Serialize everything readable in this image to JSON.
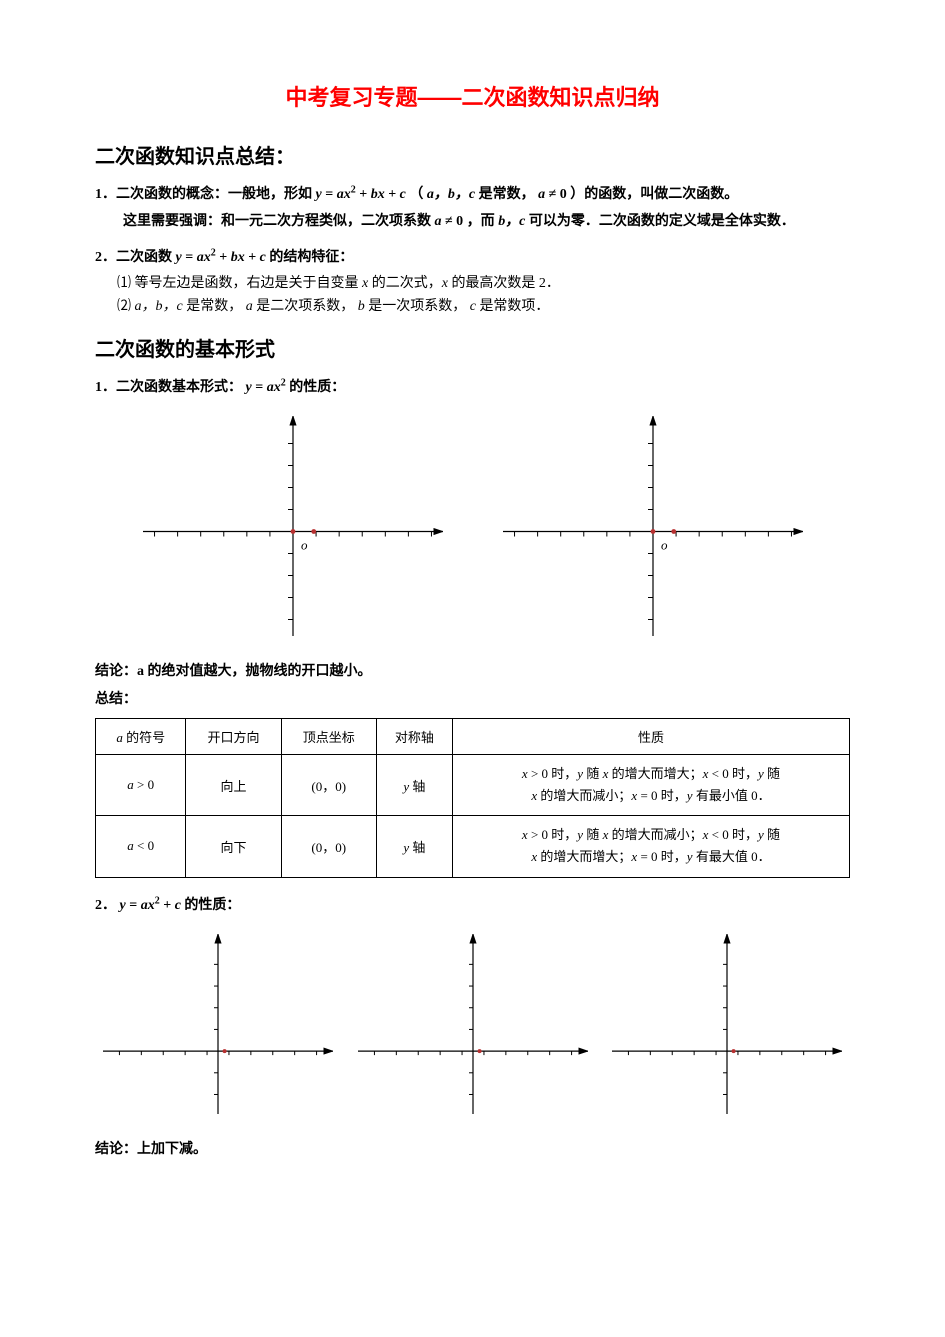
{
  "title": "中考复习专题——二次函数知识点归纳",
  "section1_h": "二次函数知识点总结：",
  "item1_lead": "1．二次函数的概念：一般地，形如 ",
  "item1_formula": "y = ax² + bx + c",
  "item1_mid": "（",
  "item1_abc": "a，b，c",
  "item1_mid2": " 是常数，",
  "item1_cond": "a ≠ 0",
  "item1_tail": "）的函数，叫做二次函数。",
  "item1_note_a": "这里需要强调：和一元二次方程类似，二次项系数 ",
  "item1_note_cond": "a ≠ 0",
  "item1_note_b": "，而 ",
  "item1_note_bc": "b，c",
  "item1_note_c": " 可以为零．二次函数的定义域是全体实数．",
  "item2_lead": "2．二次函数 ",
  "item2_formula": "y = ax² + bx + c",
  "item2_tail": " 的结构特征：",
  "sub1": "⑴ 等号左边是函数，右边是关于自变量 x 的二次式，x 的最高次数是 2．",
  "sub2_a": "⑵ ",
  "sub2_abc": "a，b，c",
  "sub2_b": " 是常数，",
  "sub2_aa": "a",
  "sub2_c": " 是二次项系数，",
  "sub2_bb": "b",
  "sub2_d": " 是一次项系数，",
  "sub2_cc": "c",
  "sub2_e": " 是常数项．",
  "section2_h": "二次函数的基本形式",
  "form1_lead": "1．二次函数基本形式：",
  "form1_formula": "y = ax²",
  "form1_tail": " 的性质：",
  "concl1": "结论：a 的绝对值越大，抛物线的开口越小。",
  "concl1b": "总结：",
  "table": {
    "headers": [
      "a 的符号",
      "开口方向",
      "顶点坐标",
      "对称轴",
      "性质"
    ],
    "rows": [
      {
        "sign": "a > 0",
        "dir": "向上",
        "vertex": "(0，0)",
        "axis": "y 轴",
        "prop": "x > 0 时，y 随 x 的增大而增大；x < 0 时，y 随 x 的增大而减小；x = 0 时，y 有最小值 0．"
      },
      {
        "sign": "a < 0",
        "dir": "向下",
        "vertex": "(0，0)",
        "axis": "y 轴",
        "prop": "x > 0 时，y 随 x 的增大而减小；x < 0 时，y 随 x 的增大而增大；x = 0 时，y 有最大值 0．"
      }
    ]
  },
  "form2_lead": "2．",
  "form2_formula": "y = ax² + c",
  "form2_tail": " 的性质：",
  "concl2": "结论：上加下减。",
  "chart": {
    "axis_color": "#000000",
    "tick_color": "#000000",
    "point_color": "#b83030",
    "origin_label": "o",
    "big_w": 300,
    "big_h": 220,
    "big_xrange": [
      -130,
      130
    ],
    "big_yrange": [
      -95,
      105
    ],
    "big_xticks": [
      -120,
      -100,
      -80,
      -60,
      -40,
      -20,
      20,
      40,
      60,
      80,
      100,
      120
    ],
    "big_yticks": [
      -80,
      -60,
      -40,
      -20,
      20,
      40,
      60,
      80
    ],
    "big_tick_len": 5,
    "big_point_r": 2.4,
    "small_w": 230,
    "small_h": 180,
    "small_xrange": [
      -105,
      105
    ],
    "small_yrange": [
      -58,
      108
    ],
    "small_xticks": [
      -90,
      -70,
      -50,
      -30,
      -10,
      10,
      30,
      50,
      70,
      90
    ],
    "small_yticks": [
      -40,
      -20,
      20,
      40,
      60,
      80
    ],
    "small_tick_len": 4,
    "small_point_r": 2
  }
}
